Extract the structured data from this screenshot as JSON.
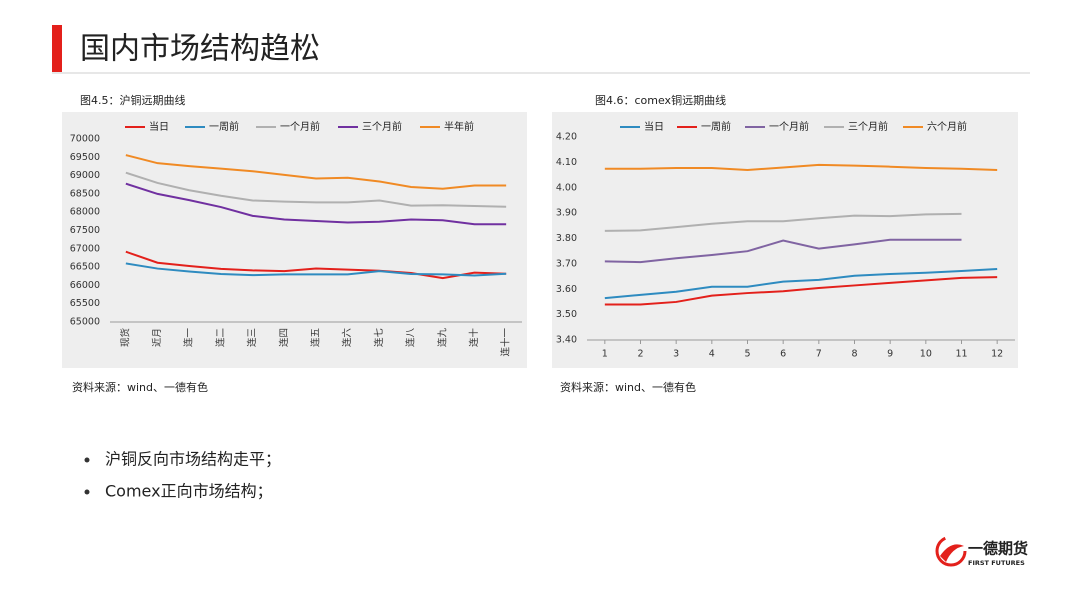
{
  "header": {
    "title": "国内市场结构趋松"
  },
  "chart_data": [
    {
      "type": "line",
      "title": "图4.5：沪铜远期曲线",
      "source": "资料来源：wind、一德有色",
      "categories": [
        "现货",
        "近月",
        "连一",
        "连二",
        "连三",
        "连四",
        "连五",
        "连六",
        "连七",
        "连八",
        "连九",
        "连十",
        "连十一"
      ],
      "ylim": [
        65000,
        70000
      ],
      "yticks": [
        65000,
        65500,
        66000,
        66500,
        67000,
        67500,
        68000,
        68500,
        69000,
        69500,
        70000
      ],
      "series": [
        {
          "name": "当日",
          "color": "#e3201b",
          "values": [
            66920,
            66620,
            66530,
            66450,
            66410,
            66390,
            66460,
            66430,
            66400,
            66340,
            66200,
            66350,
            66320
          ]
        },
        {
          "name": "一周前",
          "color": "#2e8bc0",
          "values": [
            66600,
            66460,
            66380,
            66310,
            66280,
            66300,
            66300,
            66300,
            66390,
            66310,
            66300,
            66270,
            66320
          ]
        },
        {
          "name": "一个月前",
          "color": "#b0b0b0",
          "values": [
            69080,
            68800,
            68600,
            68450,
            68320,
            68290,
            68270,
            68270,
            68320,
            68180,
            68190,
            68170,
            68150
          ]
        },
        {
          "name": "三个月前",
          "color": "#7030a0",
          "values": [
            68780,
            68500,
            68330,
            68140,
            67900,
            67800,
            67760,
            67720,
            67740,
            67800,
            67780,
            67670,
            67670
          ]
        },
        {
          "name": "半年前",
          "color": "#f08a24",
          "values": [
            69560,
            69340,
            69260,
            69190,
            69120,
            69020,
            68920,
            68940,
            68840,
            68690,
            68640,
            68730,
            68730
          ]
        }
      ]
    },
    {
      "type": "line",
      "title": "图4.6：comex铜远期曲线",
      "source": "资料来源：wind、一德有色",
      "x": [
        1,
        2,
        3,
        4,
        5,
        6,
        7,
        8,
        9,
        10,
        11,
        12
      ],
      "xlim": [
        0.5,
        12.5
      ],
      "xticks": [
        1,
        2,
        3,
        4,
        5,
        6,
        7,
        8,
        9,
        10,
        11,
        12
      ],
      "ylim": [
        3.4,
        4.2
      ],
      "yticks": [
        {
          "value": 3.4,
          "label": "3.40"
        },
        {
          "value": 3.5,
          "label": "3.50"
        },
        {
          "value": 3.6,
          "label": "3.60"
        },
        {
          "value": 3.7,
          "label": "3.70"
        },
        {
          "value": 3.8,
          "label": "3.80"
        },
        {
          "value": 3.9,
          "label": "3.90"
        },
        {
          "value": 4,
          "label": "4.00"
        },
        {
          "value": 4.1,
          "label": "4.10"
        },
        {
          "value": 4.2,
          "label": "4.20"
        }
      ],
      "series": [
        {
          "name": "当日",
          "color": "#2e8bc0",
          "values": [
            3.565,
            3.578,
            3.59,
            3.61,
            3.61,
            3.63,
            3.637,
            3.653,
            3.66,
            3.665,
            3.672,
            3.68
          ]
        },
        {
          "name": "一周前",
          "color": "#e3201b",
          "values": [
            3.54,
            3.54,
            3.55,
            3.575,
            3.585,
            3.592,
            3.605,
            3.615,
            3.625,
            3.635,
            3.645,
            3.648
          ]
        },
        {
          "name": "一个月前",
          "color": "#8064a2",
          "values": [
            3.71,
            3.707,
            3.722,
            3.735,
            3.75,
            3.792,
            3.76,
            3.777,
            3.795,
            3.795,
            3.795,
            null
          ]
        },
        {
          "name": "三个月前",
          "color": "#b0b0b0",
          "values": [
            3.83,
            3.832,
            3.845,
            3.858,
            3.868,
            3.868,
            3.88,
            3.89,
            3.888,
            3.895,
            3.897,
            null
          ]
        },
        {
          "name": "六个月前",
          "color": "#f08a24",
          "values": [
            4.075,
            4.075,
            4.078,
            4.078,
            4.07,
            4.08,
            4.09,
            4.087,
            4.083,
            4.078,
            4.075,
            4.07
          ]
        }
      ]
    }
  ],
  "bullets": [
    "沪铜反向市场结构走平；",
    "Comex正向市场结构；"
  ],
  "logo": {
    "name": "一德期货",
    "subtitle": "FIRST FUTURES"
  }
}
